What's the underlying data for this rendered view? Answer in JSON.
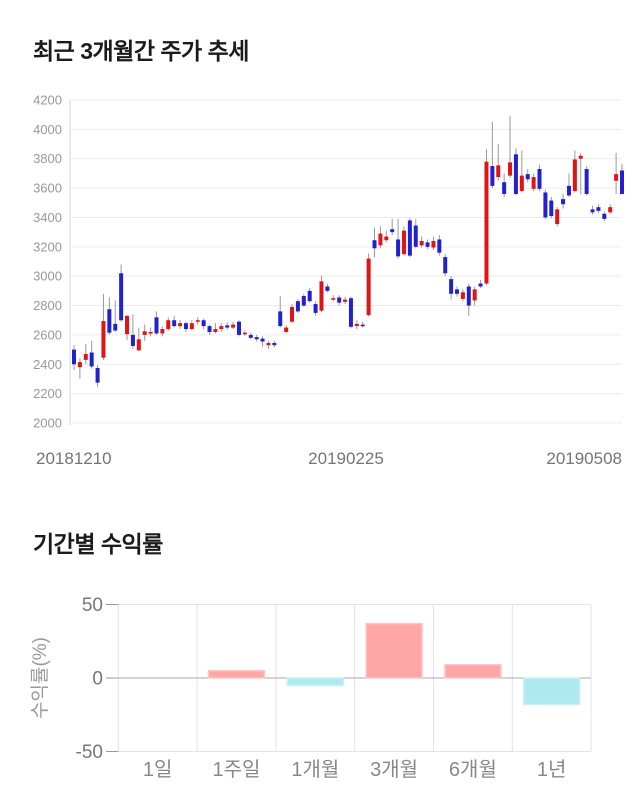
{
  "chart_data": [
    {
      "type": "candlestick",
      "title": "최근 3개월간 주가 추세",
      "y_ticks": [
        4200,
        4000,
        3800,
        3600,
        3400,
        3200,
        3000,
        2800,
        2600,
        2400,
        2200,
        2000
      ],
      "ylim": [
        2000,
        4200
      ],
      "x_labels": [
        "20181210",
        "20190225",
        "20190508"
      ],
      "grid": "horizontal",
      "up_color": "#e01414",
      "down_color": "#2222cc",
      "wick_color": "#999999",
      "axis_color": "#d6d6d6",
      "grid_color": "#ececec",
      "tick_label_color": "#999999",
      "date_label_color": "#757575",
      "candles_ohlc": [
        [
          2500,
          2530,
          2360,
          2400
        ],
        [
          2380,
          2440,
          2300,
          2415
        ],
        [
          2430,
          2540,
          2400,
          2470
        ],
        [
          2480,
          2560,
          2370,
          2385
        ],
        [
          2375,
          2395,
          2245,
          2275
        ],
        [
          2445,
          2880,
          2430,
          2695
        ],
        [
          2775,
          2855,
          2600,
          2615
        ],
        [
          2675,
          2835,
          2620,
          2630
        ],
        [
          3020,
          3080,
          2690,
          2700
        ],
        [
          2605,
          2735,
          2565,
          2730
        ],
        [
          2600,
          2740,
          2505,
          2525
        ],
        [
          2495,
          2650,
          2490,
          2570
        ],
        [
          2600,
          2670,
          2560,
          2625
        ],
        [
          2615,
          2650,
          2590,
          2620
        ],
        [
          2720,
          2760,
          2600,
          2610
        ],
        [
          2610,
          2660,
          2590,
          2640
        ],
        [
          2640,
          2720,
          2630,
          2700
        ],
        [
          2700,
          2730,
          2650,
          2660
        ],
        [
          2660,
          2700,
          2640,
          2680
        ],
        [
          2680,
          2690,
          2620,
          2640
        ],
        [
          2640,
          2700,
          2630,
          2680
        ],
        [
          2690,
          2720,
          2670,
          2700
        ],
        [
          2700,
          2710,
          2640,
          2660
        ],
        [
          2660,
          2670,
          2600,
          2620
        ],
        [
          2620,
          2680,
          2610,
          2640
        ],
        [
          2640,
          2680,
          2620,
          2660
        ],
        [
          2665,
          2685,
          2635,
          2650
        ],
        [
          2650,
          2690,
          2640,
          2670
        ],
        [
          2690,
          2700,
          2590,
          2600
        ],
        [
          2610,
          2630,
          2595,
          2615
        ],
        [
          2600,
          2615,
          2570,
          2580
        ],
        [
          2585,
          2600,
          2555,
          2570
        ],
        [
          2575,
          2590,
          2520,
          2555
        ],
        [
          2530,
          2560,
          2505,
          2545
        ],
        [
          2545,
          2560,
          2515,
          2530
        ],
        [
          2760,
          2865,
          2650,
          2660
        ],
        [
          2620,
          2665,
          2610,
          2650
        ],
        [
          2690,
          2810,
          2680,
          2790
        ],
        [
          2830,
          2845,
          2750,
          2760
        ],
        [
          2865,
          2880,
          2790,
          2800
        ],
        [
          2900,
          2920,
          2820,
          2830
        ],
        [
          2810,
          2830,
          2730,
          2750
        ],
        [
          2765,
          3005,
          2755,
          2965
        ],
        [
          2930,
          2950,
          2890,
          2900
        ],
        [
          2845,
          2870,
          2830,
          2850
        ],
        [
          2855,
          2870,
          2800,
          2820
        ],
        [
          2825,
          2860,
          2810,
          2840
        ],
        [
          2850,
          2860,
          2645,
          2655
        ],
        [
          2660,
          2700,
          2640,
          2675
        ],
        [
          2670,
          2690,
          2650,
          2665
        ],
        [
          2735,
          3155,
          2725,
          3120
        ],
        [
          3245,
          3330,
          3130,
          3190
        ],
        [
          3210,
          3340,
          3190,
          3290
        ],
        [
          3245,
          3310,
          3230,
          3270
        ],
        [
          3320,
          3390,
          3280,
          3300
        ],
        [
          3250,
          3390,
          3120,
          3135
        ],
        [
          3150,
          3340,
          3140,
          3310
        ],
        [
          3380,
          3395,
          3130,
          3140
        ],
        [
          3345,
          3390,
          3190,
          3200
        ],
        [
          3210,
          3270,
          3195,
          3240
        ],
        [
          3230,
          3250,
          3185,
          3200
        ],
        [
          3195,
          3270,
          3180,
          3240
        ],
        [
          3250,
          3280,
          3140,
          3160
        ],
        [
          3130,
          3150,
          3000,
          3020
        ],
        [
          2980,
          3000,
          2840,
          2880
        ],
        [
          2910,
          2930,
          2860,
          2880
        ],
        [
          2845,
          2910,
          2830,
          2890
        ],
        [
          2930,
          2950,
          2730,
          2800
        ],
        [
          2835,
          2930,
          2800,
          2910
        ],
        [
          2950,
          2975,
          2920,
          2930
        ],
        [
          2950,
          3865,
          2940,
          3780
        ],
        [
          3750,
          4050,
          3600,
          3615
        ],
        [
          3675,
          3900,
          3650,
          3755
        ],
        [
          3640,
          3700,
          3540,
          3560
        ],
        [
          3685,
          4090,
          3670,
          3775
        ],
        [
          3830,
          3870,
          3550,
          3560
        ],
        [
          3580,
          3855,
          3570,
          3685
        ],
        [
          3695,
          3730,
          3640,
          3660
        ],
        [
          3595,
          3700,
          3580,
          3675
        ],
        [
          3730,
          3760,
          3580,
          3595
        ],
        [
          3570,
          3590,
          3390,
          3400
        ],
        [
          3515,
          3540,
          3395,
          3410
        ],
        [
          3355,
          3470,
          3340,
          3455
        ],
        [
          3525,
          3560,
          3460,
          3490
        ],
        [
          3615,
          3700,
          3540,
          3550
        ],
        [
          3580,
          3855,
          3570,
          3795
        ],
        [
          3800,
          3840,
          3560,
          3820
        ],
        [
          3730,
          3750,
          3550,
          3560
        ],
        [
          3455,
          3480,
          3420,
          3435
        ],
        [
          3470,
          3490,
          3430,
          3445
        ],
        [
          3425,
          3440,
          3375,
          3390
        ],
        [
          3435,
          3490,
          3425,
          3470
        ],
        [
          3650,
          3840,
          3560,
          3695
        ],
        [
          3720,
          3765,
          3555,
          3560
        ]
      ]
    },
    {
      "type": "bar",
      "title": "기간별 수익률",
      "ylabel": "수익률(%)",
      "y_ticks": [
        50,
        0,
        -50
      ],
      "ylim": [
        -50,
        50
      ],
      "categories": [
        "1일",
        "1주일",
        "1개월",
        "3개월",
        "6개월",
        "1년"
      ],
      "values": [
        0,
        5,
        -5,
        37,
        9,
        -18
      ],
      "positive_color": "#ffa7a7",
      "positive_border": "#ffc6c6",
      "negative_color": "#aee9f0",
      "negative_border": "#c9f0f5",
      "zero_line_color": "#a8a8a8",
      "grid_color": "#e3e3e3",
      "tick_label_color": "#777777",
      "category_label_color": "#888888",
      "ylabel_color": "#999999"
    }
  ]
}
